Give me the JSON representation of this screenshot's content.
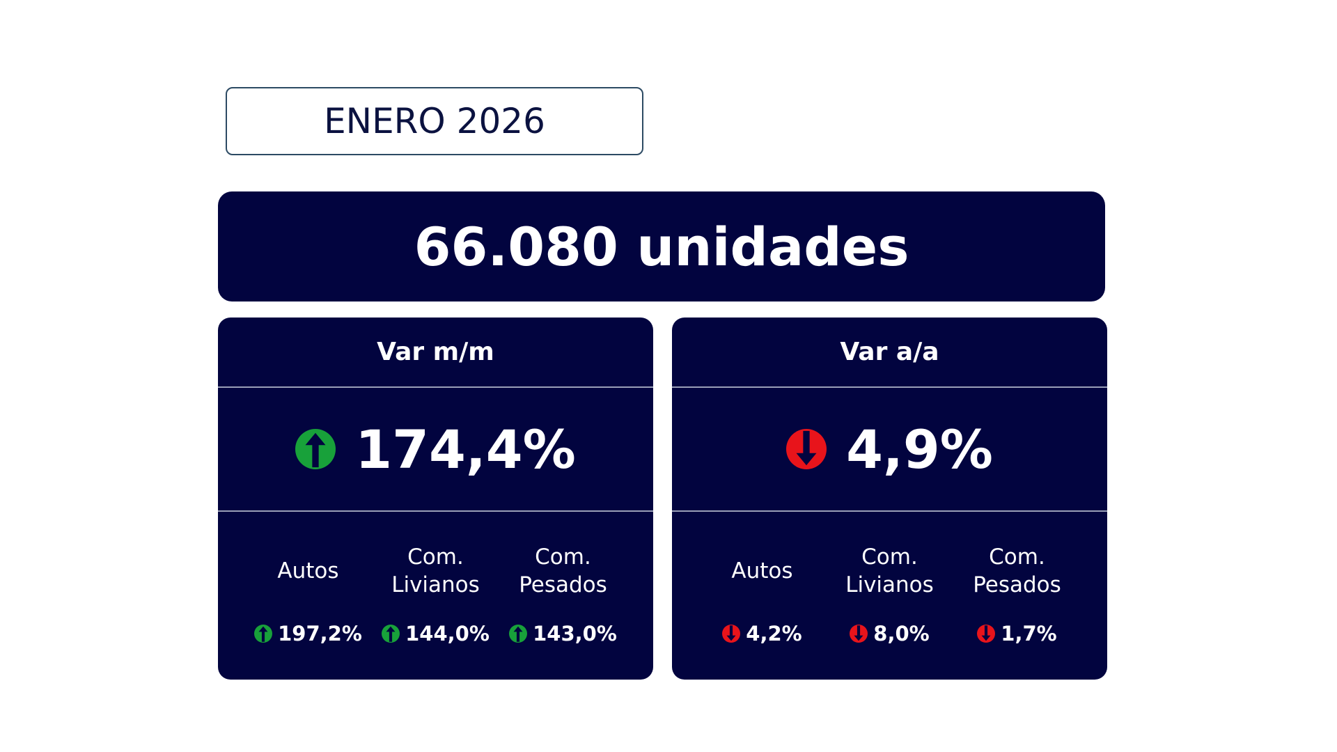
{
  "header": {
    "period": "ENERO 2026"
  },
  "total": {
    "label": "66.080 unidades"
  },
  "panels": [
    {
      "title": "Var m/m",
      "value": "174,4%",
      "items": [
        {
          "label": "Autos",
          "value": "197,2%"
        },
        {
          "label": "Com. Livianos",
          "value": "144,0%"
        },
        {
          "label": "Com. Pesados",
          "value": "143,0%"
        }
      ]
    },
    {
      "title": "Var a/a",
      "value": "4,9%",
      "items": [
        {
          "label": "Autos",
          "value": "4,2%"
        },
        {
          "label": "Com. Livianos",
          "value": "8,0%"
        },
        {
          "label": "Com. Pesados",
          "value": "1,7%"
        }
      ]
    }
  ]
}
